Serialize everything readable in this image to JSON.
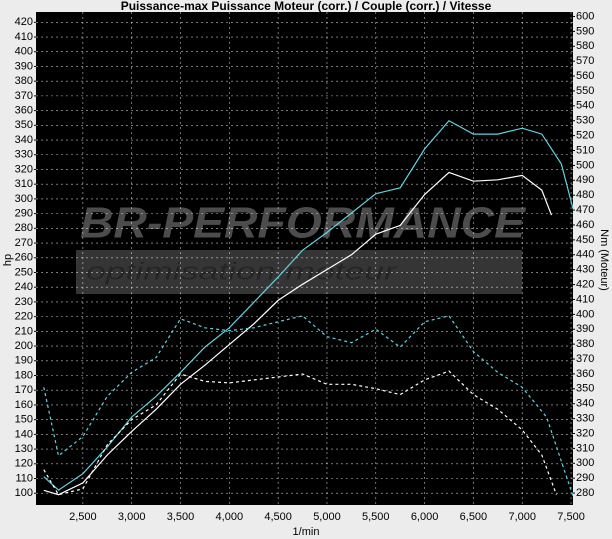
{
  "chart_data": {
    "type": "line",
    "title": "Puissance-max Puissance Moteur (corr.) / Couple (corr.) / Vitesse",
    "xlabel": "1/min",
    "ylabel": "hp",
    "y2label": "Nm (Moteur)",
    "watermark": "BR-PERFORMANCE",
    "watermark_subtitle": "optimisation moteur",
    "grid": true,
    "xlim": [
      2020,
      7520
    ],
    "ylim": [
      92,
      427
    ],
    "y2lim": [
      272,
      603
    ],
    "xticks": [
      {
        "value": 2500,
        "label": "2,500"
      },
      {
        "value": 3000,
        "label": "3,000"
      },
      {
        "value": 3500,
        "label": "3,500"
      },
      {
        "value": 4000,
        "label": "4,000"
      },
      {
        "value": 4500,
        "label": "4,500"
      },
      {
        "value": 5000,
        "label": "5,000"
      },
      {
        "value": 5500,
        "label": "5,500"
      },
      {
        "value": 6000,
        "label": "6,000"
      },
      {
        "value": 6500,
        "label": "6,500"
      },
      {
        "value": 7000,
        "label": "7,000"
      },
      {
        "value": 7500,
        "label": "7,500"
      }
    ],
    "yticks": [
      100,
      110,
      120,
      130,
      140,
      150,
      160,
      170,
      180,
      190,
      200,
      210,
      220,
      230,
      240,
      250,
      260,
      270,
      280,
      290,
      300,
      310,
      320,
      330,
      340,
      350,
      360,
      370,
      380,
      390,
      400,
      410,
      420
    ],
    "y2ticks": [
      280,
      290,
      300,
      310,
      320,
      330,
      340,
      350,
      360,
      370,
      380,
      390,
      400,
      410,
      420,
      430,
      440,
      450,
      460,
      470,
      480,
      490,
      500,
      510,
      520,
      530,
      540,
      550,
      560,
      570,
      580,
      590,
      600
    ],
    "series": [
      {
        "color": "#ffffff",
        "dash": false,
        "axis": "y",
        "x": [
          2100,
          2250,
          2500,
          2750,
          3000,
          3250,
          3500,
          3750,
          4000,
          4250,
          4500,
          4750,
          5000,
          5250,
          5500,
          5750,
          6000,
          6250,
          6500,
          6750,
          7000,
          7200,
          7300
        ],
        "values": [
          102,
          99,
          107,
          126,
          142,
          157,
          174,
          187,
          201,
          215,
          231,
          242,
          252,
          262,
          276,
          282,
          303,
          318,
          312,
          313,
          316,
          306,
          289
        ]
      },
      {
        "color": "#5fd3e0",
        "dash": false,
        "axis": "y2",
        "x": [
          2100,
          2250,
          2500,
          2750,
          3000,
          3250,
          3500,
          3750,
          4000,
          4250,
          4500,
          4750,
          5000,
          5250,
          5500,
          5750,
          6000,
          6250,
          6500,
          6750,
          7000,
          7200,
          7400,
          7520
        ],
        "values": [
          291,
          282,
          293,
          311,
          331,
          345,
          361,
          378,
          391,
          408,
          425,
          443,
          455,
          468,
          481,
          485,
          511,
          530,
          521,
          521,
          525,
          521,
          501,
          471
        ]
      },
      {
        "color": "#ffffff",
        "dash": true,
        "axis": "y",
        "x": [
          2100,
          2250,
          2500,
          2750,
          3000,
          3250,
          3500,
          3750,
          4000,
          4250,
          4500,
          4750,
          5000,
          5250,
          5500,
          5750,
          6000,
          6250,
          6500,
          6750,
          7000,
          7200,
          7350
        ],
        "values": [
          116,
          99,
          103,
          133,
          150,
          160,
          181,
          176,
          175,
          177,
          179,
          181,
          174,
          174,
          171,
          167,
          177,
          183,
          167,
          157,
          143,
          126,
          99
        ]
      },
      {
        "color": "#5fd3e0",
        "dash": true,
        "axis": "y2",
        "x": [
          2100,
          2250,
          2500,
          2750,
          3000,
          3250,
          3500,
          3750,
          4000,
          4250,
          4500,
          4750,
          5000,
          5250,
          5500,
          5750,
          6000,
          6250,
          6500,
          6750,
          7000,
          7250,
          7520
        ],
        "values": [
          351,
          305,
          318,
          345,
          361,
          371,
          397,
          391,
          389,
          391,
          395,
          399,
          385,
          381,
          390,
          378,
          395,
          399,
          375,
          361,
          351,
          331,
          278
        ]
      }
    ]
  }
}
